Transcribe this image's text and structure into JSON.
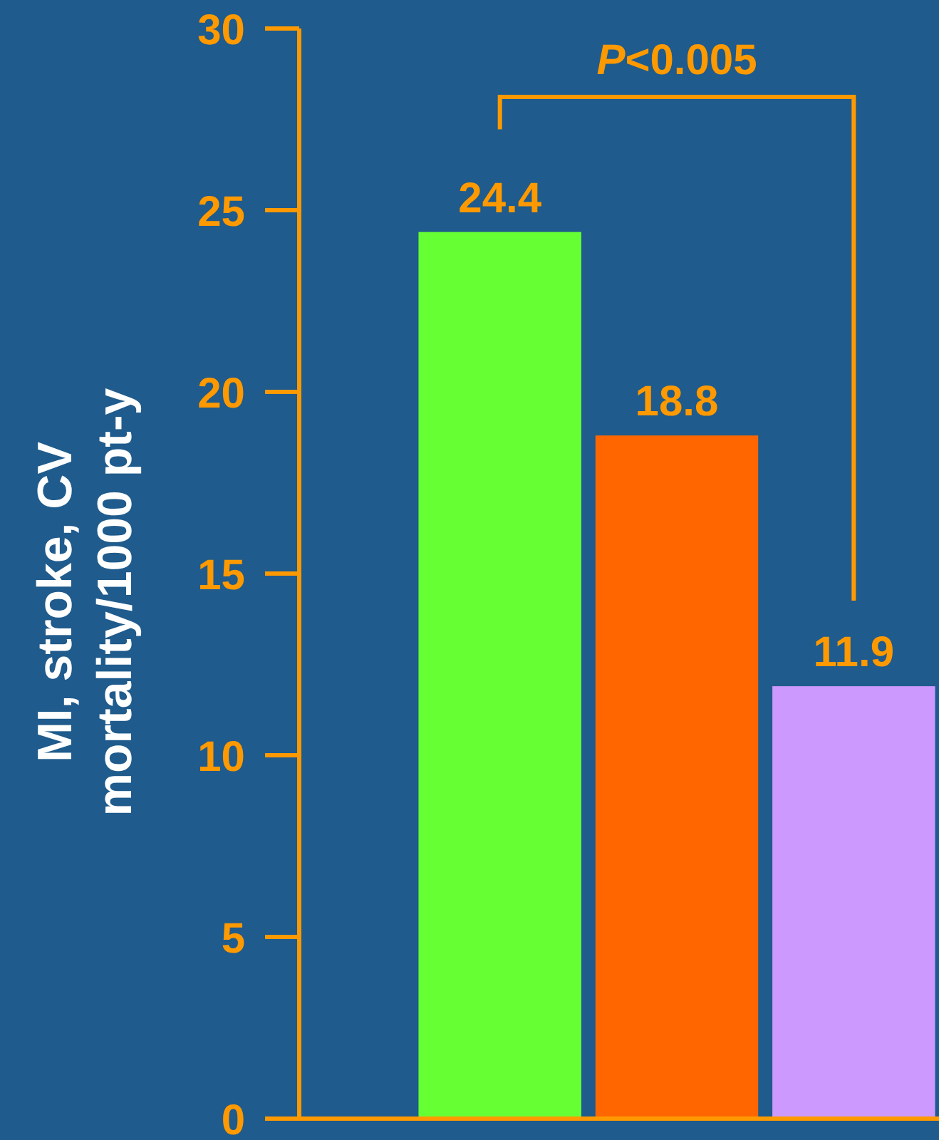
{
  "chart_data": {
    "type": "bar",
    "ylabel": "MI, stroke, CV mortality/1000 pt-y",
    "categories": [
      null,
      null,
      null
    ],
    "values": [
      24.4,
      18.8,
      11.9
    ],
    "colors": [
      "#66ff33",
      "#ff6600",
      "#cc99ff"
    ],
    "ylim": [
      0,
      30
    ],
    "yticks": [
      0,
      5,
      10,
      15,
      20,
      25,
      30
    ],
    "grid": false,
    "data_labels": true,
    "annotations": [
      "P<0.005"
    ]
  }
}
